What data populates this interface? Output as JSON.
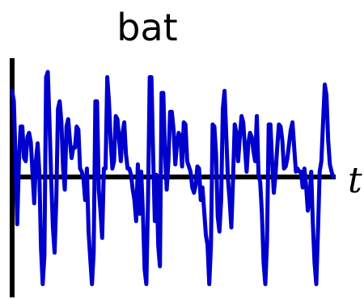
{
  "chart_data": {
    "type": "line",
    "title": "bat",
    "xlabel": "t",
    "ylabel": "",
    "grid": false,
    "legend": "none",
    "color": "#0000cc",
    "axis_color": "#000000",
    "ylim": [
      -1.2,
      1.2
    ],
    "series": [
      {
        "values": [
          0.82,
          0.72,
          0.18,
          -0.45,
          0.15,
          0.48,
          0.48,
          0.18,
          0.15,
          0.38,
          0.42,
          0.33,
          0.04,
          -0.25,
          0.15,
          0.32,
          0.05,
          -0.68,
          -1.02,
          -0.75,
          0.95,
          1.0,
          0.52,
          -0.02,
          -0.48,
          -0.72,
          -0.22,
          0.65,
          0.72,
          0.52,
          0.08,
          -0.12,
          0.48,
          0.55,
          0.35,
          0.18,
          0.28,
          0.28,
          0.48,
          0.45,
          0.08,
          0.05,
          -0.02,
          -0.22,
          0.08,
          -0.52,
          -0.78,
          -1.02,
          -0.72,
          0.72,
          0.72,
          -0.12,
          -0.32,
          -0.58,
          0.08,
          0.08,
          0.95,
          0.72,
          0.35,
          0.08,
          0.15,
          0.58,
          0.55,
          0.35,
          0.15,
          0.42,
          0.52,
          0.22,
          0.08,
          0.08,
          0.02,
          -0.12,
          -0.22,
          -0.42,
          0.12,
          -0.35,
          0.05,
          -0.35,
          -0.88,
          -1.02,
          -0.22,
          0.95,
          0.95,
          0.22,
          -0.42,
          0.02,
          -0.65,
          -0.85,
          0.8,
          0.8,
          0.22,
          -0.12,
          0.15,
          0.62,
          0.62,
          0.45,
          0.12,
          0.32,
          0.42,
          0.38,
          0.1,
          0.52,
          0.5,
          0.15,
          0.1,
          0.05,
          -0.1,
          -0.15,
          -0.08,
          0.1,
          0.08,
          -0.22,
          -0.1,
          -0.32,
          -0.55,
          -0.65,
          -1.02,
          -0.65,
          0.5,
          0.48,
          0.22,
          -0.38,
          -0.52,
          -0.22,
          0.65,
          0.82,
          0.4,
          -0.02,
          -0.22,
          -0.48,
          -0.02,
          0.5,
          0.42,
          0.15,
          0.38,
          0.58,
          0.52,
          0.28,
          0.05,
          0.32,
          0.42,
          0.38,
          0.25,
          0.15,
          0.58,
          0.02,
          -0.05,
          -0.35,
          -0.82,
          -1.02,
          -0.62,
          0.5,
          0.5,
          0.15,
          -0.15,
          0.02,
          0.28,
          0.5,
          0.48,
          0.35,
          0.08,
          0.1,
          0.18,
          0.32,
          0.45,
          0.52,
          0.28,
          0.05,
          0.08,
          0.05,
          0.05,
          -0.1,
          0.08,
          -0.08,
          -0.32,
          -0.22,
          0.05,
          -0.45,
          -0.82,
          -1.02,
          -0.52,
          0.05,
          0.15,
          0.52,
          0.88,
          0.78,
          0.35,
          0.12,
          0.05,
          0.0
        ]
      }
    ]
  }
}
